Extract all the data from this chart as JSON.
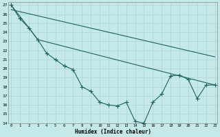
{
  "title": "",
  "xlabel": "Humidex (Indice chaleur)",
  "background_color": "#c5e8e8",
  "grid_color": "#aad4d4",
  "line_color": "#1a6060",
  "ylim": [
    14,
    27.3
  ],
  "xlim": [
    -0.3,
    23.3
  ],
  "yticks": [
    14,
    15,
    16,
    17,
    18,
    19,
    20,
    21,
    22,
    23,
    24,
    25,
    26,
    27
  ],
  "xticks": [
    0,
    1,
    2,
    3,
    4,
    5,
    6,
    7,
    8,
    9,
    10,
    11,
    12,
    13,
    14,
    15,
    16,
    17,
    18,
    19,
    20,
    21,
    22,
    23
  ],
  "line1_x": [
    0,
    1,
    2,
    3,
    4,
    5,
    6,
    7,
    8,
    9,
    10,
    11,
    12,
    13,
    14,
    15,
    16,
    17,
    18,
    19,
    20,
    21,
    22,
    23
  ],
  "line1_y": [
    27.0,
    25.5,
    24.5,
    23.2,
    21.7,
    21.0,
    20.3,
    19.9,
    18.0,
    17.5,
    16.3,
    16.0,
    15.9,
    16.3,
    14.2,
    14.0,
    16.3,
    17.2,
    19.2,
    19.3,
    18.8,
    16.7,
    18.2,
    18.2
  ],
  "line2_x": [
    0,
    2,
    3,
    23
  ],
  "line2_y": [
    27.0,
    24.5,
    23.2,
    18.2
  ],
  "line3_x": [
    0,
    23
  ],
  "line3_y": [
    26.5,
    21.3
  ],
  "lw": 0.8,
  "markersize": 2.0
}
